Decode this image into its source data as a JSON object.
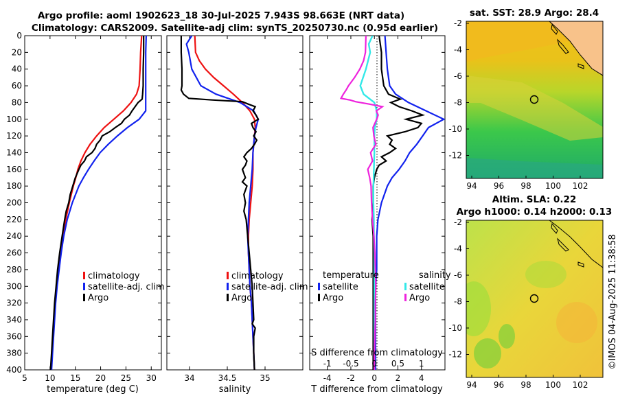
{
  "title": {
    "line1": "Argo profile: aoml 1902623_18 30-Jul-2025 7.943S 98.663E (NRT data)",
    "line2": "Climatology: CARS2009. Satellite-adj clim: synTS_20250730.nc (0.95d earlier)"
  },
  "colors": {
    "climatology": "#ee1111",
    "satellite": "#1122ee",
    "argo": "#000000",
    "salinity_satellite": "#33e8e8",
    "salinity_argo": "#ee22dd"
  },
  "map_sst": {
    "title": "sat. SST: 28.9 Argo: 28.4",
    "xticks": [
      "94",
      "96",
      "98",
      "100",
      "102"
    ],
    "yticks": [
      "-2",
      "-4",
      "-6",
      "-8",
      "-10",
      "-12"
    ]
  },
  "map_sla": {
    "title1": "Altim. SLA: 0.22",
    "title2": "Argo h1000: 0.14 h2000: 0.13",
    "xticks": [
      "94",
      "96",
      "98",
      "100",
      "102"
    ],
    "yticks": [
      "-2",
      "-4",
      "-6",
      "-8",
      "-10",
      "-12"
    ]
  },
  "stamp": "©IMOS 04-Aug-2025 11:38:58",
  "chart_data": [
    {
      "type": "line",
      "name": "temperature",
      "xlabel": "temperature (deg C)",
      "ylabel": "",
      "xlim": [
        5,
        32
      ],
      "ylim": [
        400,
        0
      ],
      "xticks": [
        "5",
        "10",
        "15",
        "20",
        "25",
        "30"
      ],
      "yticks": [
        "0",
        "20",
        "40",
        "60",
        "80",
        "100",
        "120",
        "140",
        "160",
        "180",
        "200",
        "220",
        "240",
        "260",
        "280",
        "300",
        "320",
        "340",
        "360",
        "380",
        "400"
      ],
      "legend": [
        "climatology",
        "satellite-adj. clim",
        "Argo"
      ],
      "series": [
        {
          "name": "climatology",
          "depth": [
            0,
            20,
            40,
            60,
            70,
            80,
            90,
            100,
            110,
            120,
            130,
            140,
            150,
            160,
            170,
            180,
            200,
            220,
            240,
            260,
            280,
            300,
            320,
            340,
            360,
            380,
            400
          ],
          "values": [
            28.1,
            27.9,
            27.8,
            27.6,
            27.1,
            26.0,
            24.5,
            22.6,
            20.7,
            19.2,
            17.9,
            16.9,
            16.1,
            15.5,
            15.1,
            14.6,
            13.8,
            13.1,
            12.5,
            12.0,
            11.6,
            11.3,
            11.0,
            10.8,
            10.6,
            10.4,
            10.2
          ]
        },
        {
          "name": "satellite-adj. clim",
          "depth": [
            0,
            20,
            40,
            60,
            80,
            90,
            100,
            110,
            120,
            130,
            140,
            150,
            160,
            170,
            180,
            200,
            220,
            240,
            260,
            280,
            300,
            320,
            340,
            360,
            380,
            400
          ],
          "values": [
            29.0,
            28.9,
            28.9,
            28.9,
            28.9,
            28.9,
            27.6,
            25.3,
            23.3,
            21.5,
            19.9,
            18.7,
            17.6,
            16.6,
            15.7,
            14.4,
            13.4,
            12.7,
            12.2,
            11.8,
            11.4,
            11.1,
            10.9,
            10.7,
            10.5,
            10.3
          ]
        },
        {
          "name": "Argo",
          "depth": [
            0,
            20,
            40,
            60,
            70,
            76,
            80,
            85,
            90,
            95,
            100,
            105,
            110,
            115,
            120,
            125,
            130,
            135,
            140,
            145,
            150,
            155,
            160,
            170,
            180,
            190,
            200,
            210,
            220,
            240,
            260,
            280,
            300,
            320,
            340,
            360,
            380,
            400
          ],
          "values": [
            28.5,
            28.5,
            28.4,
            28.4,
            28.3,
            28.2,
            27.4,
            26.8,
            26.2,
            25.7,
            24.7,
            24.1,
            22.9,
            21.8,
            20.3,
            19.9,
            19.2,
            18.9,
            18.3,
            17.2,
            16.8,
            16.1,
            15.7,
            15.0,
            14.5,
            14.0,
            13.7,
            13.2,
            12.9,
            12.4,
            11.9,
            11.5,
            11.2,
            10.9,
            10.7,
            10.5,
            10.3,
            10.1
          ]
        }
      ]
    },
    {
      "type": "line",
      "name": "salinity",
      "xlabel": "salinity",
      "ylabel": "",
      "xlim": [
        33.7,
        35.5
      ],
      "ylim": [
        400,
        0
      ],
      "xticks": [
        "34",
        "34.5",
        "35"
      ],
      "legend": [
        "climatology",
        "satellite-adj. clim",
        "Argo"
      ],
      "series": [
        {
          "name": "climatology",
          "depth": [
            0,
            20,
            30,
            40,
            50,
            60,
            70,
            80,
            90,
            100,
            110,
            120,
            140,
            160,
            180,
            200,
            220,
            240,
            260,
            280,
            300,
            320,
            340,
            360,
            380,
            400
          ],
          "values": [
            34.07,
            34.08,
            34.13,
            34.21,
            34.32,
            34.45,
            34.58,
            34.7,
            34.8,
            34.86,
            34.87,
            34.86,
            34.84,
            34.84,
            34.83,
            34.81,
            34.79,
            34.78,
            34.78,
            34.79,
            34.8,
            34.82,
            34.83,
            34.84,
            34.85,
            34.86
          ]
        },
        {
          "name": "satellite-adj. clim",
          "depth": [
            0,
            10,
            20,
            40,
            60,
            70,
            80,
            90,
            100,
            110,
            120,
            140,
            160,
            180,
            200,
            220,
            240,
            260,
            280,
            300,
            320,
            340,
            360,
            380,
            400
          ],
          "values": [
            34.03,
            33.96,
            33.99,
            34.03,
            34.15,
            34.35,
            34.67,
            34.85,
            34.91,
            34.88,
            34.86,
            34.84,
            34.83,
            34.81,
            34.79,
            34.78,
            34.77,
            34.78,
            34.79,
            34.8,
            34.82,
            34.83,
            34.84,
            34.85,
            34.86
          ]
        },
        {
          "name": "Argo",
          "depth": [
            0,
            20,
            40,
            60,
            65,
            70,
            75,
            77,
            79,
            82,
            85,
            90,
            95,
            100,
            105,
            110,
            115,
            120,
            125,
            130,
            135,
            140,
            145,
            150,
            155,
            160,
            165,
            170,
            175,
            180,
            190,
            200,
            210,
            220,
            240,
            260,
            280,
            300,
            320,
            340,
            345,
            350,
            360,
            380,
            400
          ],
          "values": [
            33.89,
            33.89,
            33.9,
            33.9,
            33.89,
            33.92,
            33.99,
            34.3,
            34.7,
            34.78,
            34.87,
            34.84,
            34.88,
            34.91,
            34.82,
            34.84,
            34.88,
            34.85,
            34.89,
            34.86,
            34.82,
            34.76,
            34.72,
            34.76,
            34.74,
            34.7,
            34.72,
            34.74,
            34.7,
            34.76,
            34.72,
            34.74,
            34.72,
            34.75,
            34.77,
            34.79,
            34.81,
            34.83,
            34.84,
            34.85,
            34.83,
            34.87,
            34.85,
            34.85,
            34.86
          ]
        }
      ]
    },
    {
      "type": "line",
      "name": "difference",
      "xlabel": "T difference from climatology",
      "xlabel_top": "S difference from climatology",
      "ylabel": "",
      "xlim": [
        -5.5,
        6
      ],
      "ylim": [
        400,
        0
      ],
      "xticks": [
        "-4",
        "-2",
        "0",
        "2",
        "4"
      ],
      "s_xticks": [
        "-1",
        "-0.5",
        "0",
        "0.5",
        "1"
      ],
      "legend_groups": [
        {
          "heading": "temperature",
          "items": [
            "satellite",
            "Argo"
          ]
        },
        {
          "heading": "salinity",
          "items": [
            "satellite",
            "Argo"
          ]
        }
      ],
      "series": [
        {
          "name": "temperature satellite",
          "depth": [
            0,
            20,
            40,
            60,
            70,
            80,
            90,
            100,
            110,
            120,
            130,
            140,
            150,
            160,
            170,
            180,
            200,
            220,
            240,
            260,
            280,
            300,
            320,
            340,
            360,
            380,
            400
          ],
          "values": [
            0.9,
            1.0,
            1.1,
            1.3,
            1.8,
            2.9,
            4.4,
            5.9,
            4.6,
            4.1,
            3.6,
            3.0,
            2.6,
            2.1,
            1.5,
            1.1,
            0.6,
            0.3,
            0.2,
            0.2,
            0.2,
            0.1,
            0.1,
            0.1,
            0.1,
            0.1,
            0.1
          ]
        },
        {
          "name": "temperature Argo",
          "depth": [
            0,
            20,
            40,
            60,
            70,
            76,
            80,
            85,
            90,
            95,
            100,
            105,
            110,
            115,
            120,
            125,
            130,
            135,
            140,
            145,
            150,
            155,
            160,
            170,
            180,
            200,
            220,
            240,
            260,
            280,
            300,
            320,
            340,
            360,
            380,
            400
          ],
          "values": [
            0.4,
            0.6,
            0.6,
            0.8,
            1.2,
            2.2,
            1.4,
            2.1,
            3.2,
            4.1,
            2.7,
            4.0,
            3.7,
            2.6,
            1.1,
            1.5,
            1.3,
            1.8,
            1.3,
            0.6,
            1.0,
            0.4,
            0.2,
            0.0,
            -0.1,
            -0.1,
            -0.2,
            -0.1,
            -0.1,
            -0.1,
            -0.1,
            -0.1,
            -0.1,
            -0.1,
            -0.1,
            -0.1
          ]
        },
        {
          "name": "salinity satellite",
          "depth": [
            0,
            10,
            20,
            40,
            60,
            70,
            80,
            90,
            100,
            110,
            120,
            140,
            160,
            180,
            200,
            220,
            240,
            260,
            280,
            300,
            320,
            340,
            360,
            380,
            400
          ],
          "values": [
            -0.04,
            -0.12,
            -0.09,
            -0.18,
            -0.3,
            -0.23,
            0.0,
            0.05,
            0.05,
            0.01,
            0.0,
            0.0,
            -0.01,
            -0.02,
            -0.02,
            -0.01,
            -0.01,
            0.0,
            0.0,
            0.0,
            0.0,
            0.0,
            0.0,
            0.0,
            0.0
          ]
        },
        {
          "name": "salinity Argo",
          "depth": [
            0,
            20,
            30,
            40,
            50,
            60,
            65,
            70,
            75,
            77,
            79,
            82,
            85,
            90,
            95,
            100,
            110,
            120,
            130,
            140,
            150,
            160,
            170,
            180,
            200,
            220,
            240,
            260,
            280,
            300,
            320,
            340,
            360,
            380,
            400
          ],
          "values": [
            -0.18,
            -0.19,
            -0.23,
            -0.31,
            -0.42,
            -0.55,
            -0.6,
            -0.66,
            -0.71,
            -0.52,
            -0.4,
            -0.1,
            0.17,
            0.04,
            0.08,
            0.05,
            -0.03,
            -0.01,
            0.03,
            -0.08,
            -0.04,
            -0.14,
            -0.1,
            -0.07,
            -0.06,
            -0.04,
            -0.01,
            0.01,
            0.02,
            0.03,
            0.02,
            0.02,
            0.01,
            0.0,
            0.0
          ]
        }
      ]
    }
  ]
}
